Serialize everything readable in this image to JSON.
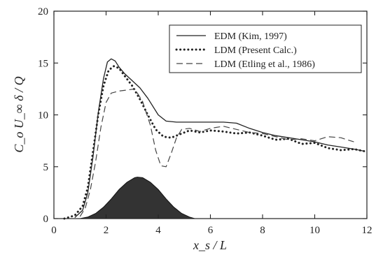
{
  "chart_data": {
    "type": "line",
    "title": "",
    "xlabel": "x_s / L",
    "ylabel": "C_o U_∞ δ / Q",
    "xlim": [
      0,
      12
    ],
    "ylim": [
      0,
      20
    ],
    "x_ticks": [
      0,
      2,
      4,
      6,
      8,
      10,
      12
    ],
    "y_ticks": [
      0,
      5,
      10,
      15,
      20
    ],
    "x_tick_labels": [
      "0",
      "2",
      "4",
      "6",
      "8",
      "10",
      "12"
    ],
    "y_tick_labels": [
      "0",
      "5",
      "10",
      "15",
      "20"
    ],
    "grid": false,
    "legend_position": "top-right",
    "series": [
      {
        "name": "EDM (Kim, 1997)",
        "style": "solid",
        "color": "#222222",
        "x": [
          0.8,
          1.1,
          1.3,
          1.5,
          1.7,
          1.9,
          2.05,
          2.2,
          2.35,
          2.5,
          2.7,
          3.0,
          3.3,
          3.6,
          4.0,
          4.3,
          4.7,
          5.0,
          5.5,
          6.0,
          6.5,
          7.0,
          7.5,
          8.0,
          8.5,
          9.0,
          9.5,
          10.0,
          10.5,
          11.0,
          11.5,
          11.9
        ],
        "y": [
          0.1,
          0.8,
          2.5,
          6.0,
          10.2,
          13.5,
          15.1,
          15.4,
          15.2,
          14.6,
          14.0,
          13.3,
          12.6,
          11.6,
          10.0,
          9.4,
          9.3,
          9.3,
          9.3,
          9.3,
          9.3,
          9.2,
          8.7,
          8.3,
          8.0,
          7.8,
          7.6,
          7.4,
          7.1,
          6.9,
          6.7,
          6.5
        ]
      },
      {
        "name": "LDM (Present Calc.)",
        "style": "dotted",
        "color": "#222222",
        "x": [
          0.4,
          0.8,
          1.1,
          1.3,
          1.5,
          1.7,
          1.9,
          2.1,
          2.3,
          2.5,
          2.7,
          3.0,
          3.3,
          3.6,
          3.9,
          4.2,
          4.5,
          4.8,
          5.2,
          5.6,
          6.0,
          6.5,
          7.0,
          7.5,
          8.0,
          8.5,
          9.0,
          9.5,
          10.0,
          10.5,
          11.0,
          11.5,
          11.9
        ],
        "y": [
          0.0,
          0.3,
          1.2,
          3.0,
          6.5,
          10.0,
          12.8,
          14.3,
          14.7,
          14.5,
          13.8,
          12.8,
          11.5,
          10.0,
          8.6,
          7.9,
          7.8,
          8.1,
          8.5,
          8.3,
          8.5,
          8.4,
          8.2,
          8.3,
          8.0,
          7.6,
          7.7,
          7.2,
          7.3,
          6.8,
          6.6,
          6.7,
          6.5
        ]
      },
      {
        "name": "LDM (Etling et al., 1986)",
        "style": "dashed",
        "color": "#444444",
        "x": [
          1.0,
          1.2,
          1.4,
          1.6,
          1.8,
          2.0,
          2.2,
          2.5,
          2.8,
          3.1,
          3.4,
          3.7,
          3.9,
          4.1,
          4.3,
          4.5,
          4.7,
          4.9,
          5.2,
          5.6,
          6.0,
          6.5,
          7.0,
          7.5,
          8.0,
          8.5,
          9.0,
          9.5,
          10.0,
          10.5,
          11.0,
          11.5
        ],
        "y": [
          0.2,
          1.0,
          2.8,
          5.5,
          8.8,
          11.2,
          12.1,
          12.3,
          12.4,
          12.5,
          11.3,
          9.0,
          6.6,
          5.1,
          5.0,
          6.3,
          7.8,
          8.6,
          8.7,
          8.4,
          8.7,
          8.9,
          8.6,
          8.3,
          8.2,
          7.9,
          7.6,
          7.7,
          7.5,
          7.9,
          7.8,
          7.4
        ]
      }
    ],
    "filled_region": {
      "description_key": "hill",
      "color": "#333333",
      "x": [
        1.0,
        1.3,
        1.6,
        1.9,
        2.2,
        2.5,
        2.8,
        3.1,
        3.2,
        3.4,
        3.7,
        4.0,
        4.3,
        4.6,
        4.9,
        5.2,
        5.4
      ],
      "y": [
        0.0,
        0.15,
        0.5,
        1.1,
        1.9,
        2.8,
        3.5,
        3.95,
        4.0,
        3.95,
        3.5,
        2.8,
        1.9,
        1.1,
        0.5,
        0.15,
        0.0
      ]
    }
  }
}
